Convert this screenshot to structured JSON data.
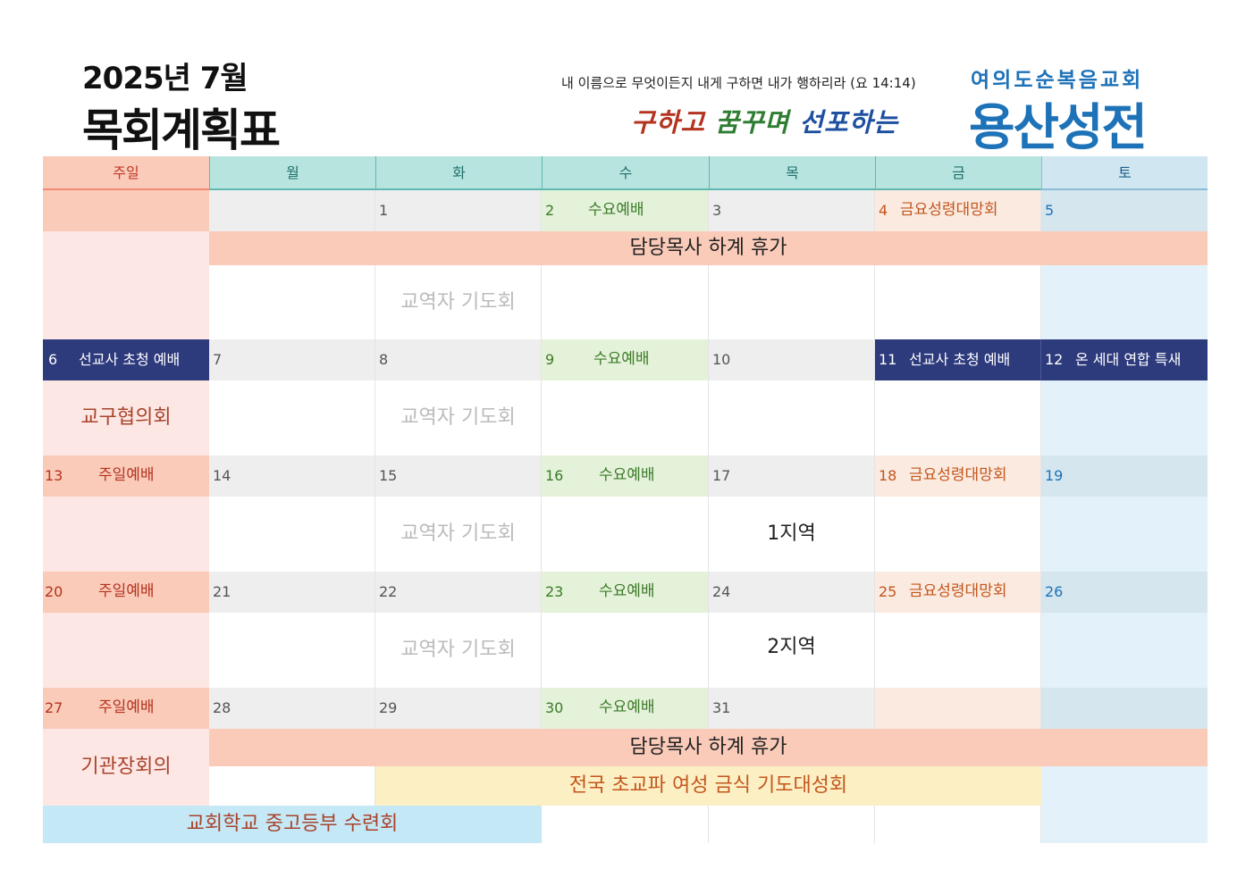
{
  "header": {
    "year_month": "2025년 7월",
    "title": "목회계획표",
    "verse": "내 이름으로 무엇이든지 내게 구하면 내가 행하리라 (요 14:14)",
    "slogan_part1": "구하고",
    "slogan_part2": "꿈꾸며",
    "slogan_part3": "선포하는",
    "church_sub": "여의도순복음교회",
    "church_name": "용산성전"
  },
  "weekdays": [
    "주일",
    "월",
    "화",
    "수",
    "목",
    "금",
    "토"
  ],
  "colors": {
    "sunday": "#f08a74",
    "saturday": "#1d72b8",
    "wednesday": "#3e7a2a",
    "friday": "#c2561d",
    "navy": "#2d3a7c",
    "salmon": "#fbcbb9"
  },
  "week1": {
    "d1": "1",
    "d2": "2",
    "wed": "수요예배",
    "d3": "3",
    "d4": "4",
    "fri": "금요성령대망회",
    "d5": "5",
    "band": "담당목사 하계 휴가",
    "tue": "교역자 기도회"
  },
  "week2": {
    "d6": "6",
    "sun": "선교사 초청 예배",
    "d7": "7",
    "d8": "8",
    "d9": "9",
    "wed": "수요예배",
    "d10": "10",
    "d11": "11",
    "fri": "선교사 초청 예배",
    "d12": "12",
    "sat": "온 세대 연합 특새",
    "sun_event": "교구협의회",
    "tue": "교역자 기도회"
  },
  "week3": {
    "d13": "13",
    "sun": "주일예배",
    "d14": "14",
    "d15": "15",
    "d16": "16",
    "wed": "수요예배",
    "d17": "17",
    "d18": "18",
    "fri": "금요성령대망회",
    "d19": "19",
    "tue": "교역자 기도회",
    "thu": "1지역"
  },
  "week4": {
    "d20": "20",
    "sun": "주일예배",
    "d21": "21",
    "d22": "22",
    "d23": "23",
    "wed": "수요예배",
    "d24": "24",
    "d25": "25",
    "fri": "금요성령대망회",
    "d26": "26",
    "tue": "교역자 기도회",
    "thu": "2지역"
  },
  "week5": {
    "d27": "27",
    "sun": "주일예배",
    "d28": "28",
    "d29": "29",
    "d30": "30",
    "wed": "수요예배",
    "d31": "31",
    "band": "담당목사 하계 휴가",
    "sun_event": "기관장회의",
    "fasting": "전국 초교파 여성 금식 기도대성회",
    "retreat": "교회학교 중고등부 수련회"
  }
}
